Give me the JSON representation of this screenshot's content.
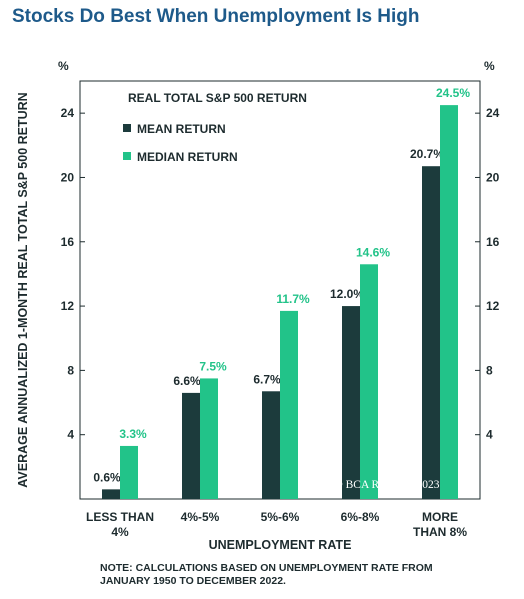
{
  "title": "Stocks Do Best When Unemployment Is High",
  "note": {
    "line1": "NOTE: CALCULATIONS BASED ON UNEMPLOYMENT RATE FROM",
    "line2": "JANUARY 1950 TO DECEMBER 2022."
  },
  "watermark": "© BCA Research 2023",
  "chart_data": {
    "type": "bar",
    "legend_title": "REAL TOTAL S&P 500  RETURN",
    "legend_placement": "top-left",
    "ylabel": "AVERAGE ANNUALIZED 1-MONTH REAL TOTAL S&P 500 RETURN",
    "xlabel": "UNEMPLOYMENT RATE",
    "yunit": "%",
    "ylim": [
      0,
      26
    ],
    "yticks": [
      4,
      8,
      12,
      16,
      20,
      24
    ],
    "grid": false,
    "categories": [
      [
        "LESS THAN",
        "4%"
      ],
      [
        "4%-5%"
      ],
      [
        "5%-6%"
      ],
      [
        "6%-8%"
      ],
      [
        "MORE",
        "THAN 8%"
      ]
    ],
    "series": [
      {
        "name": "MEAN RETURN",
        "color": "#1c3b3c",
        "values": [
          0.6,
          6.6,
          6.7,
          12.0,
          20.7
        ],
        "labels": [
          "0.6%",
          "6.6%",
          "6.7%",
          "12.0%",
          "20.7%"
        ]
      },
      {
        "name": "MEDIAN RETURN",
        "color": "#22c389",
        "values": [
          3.3,
          7.5,
          11.7,
          14.6,
          24.5
        ],
        "labels": [
          "3.3%",
          "7.5%",
          "11.7%",
          "14.6%",
          "24.5%"
        ]
      }
    ]
  }
}
